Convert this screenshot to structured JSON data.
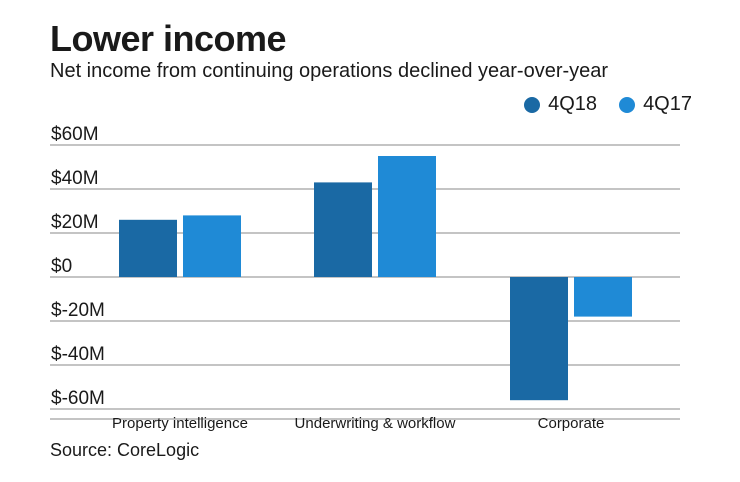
{
  "chart_data": {
    "type": "bar",
    "title": "Lower income",
    "subtitle": "Net income from continuing operations declined year-over-year",
    "categories": [
      "Property intelligence",
      "Underwriting & workflow",
      "Corporate"
    ],
    "series": [
      {
        "name": "4Q18",
        "color": "#1a69a4",
        "values": [
          26,
          43,
          -56
        ]
      },
      {
        "name": "4Q17",
        "color": "#1f8ad6",
        "values": [
          28,
          55,
          -18
        ]
      }
    ],
    "yticks": [
      60,
      40,
      20,
      0,
      -20,
      -40,
      -60
    ],
    "ytick_labels": [
      "$60M",
      "$40M",
      "$20M",
      "$0",
      "$-20M",
      "$-40M",
      "$-60M"
    ],
    "ylim": [
      -60,
      60
    ],
    "grid": true,
    "legend_position": "top-right",
    "source": "Source: CoreLogic"
  }
}
